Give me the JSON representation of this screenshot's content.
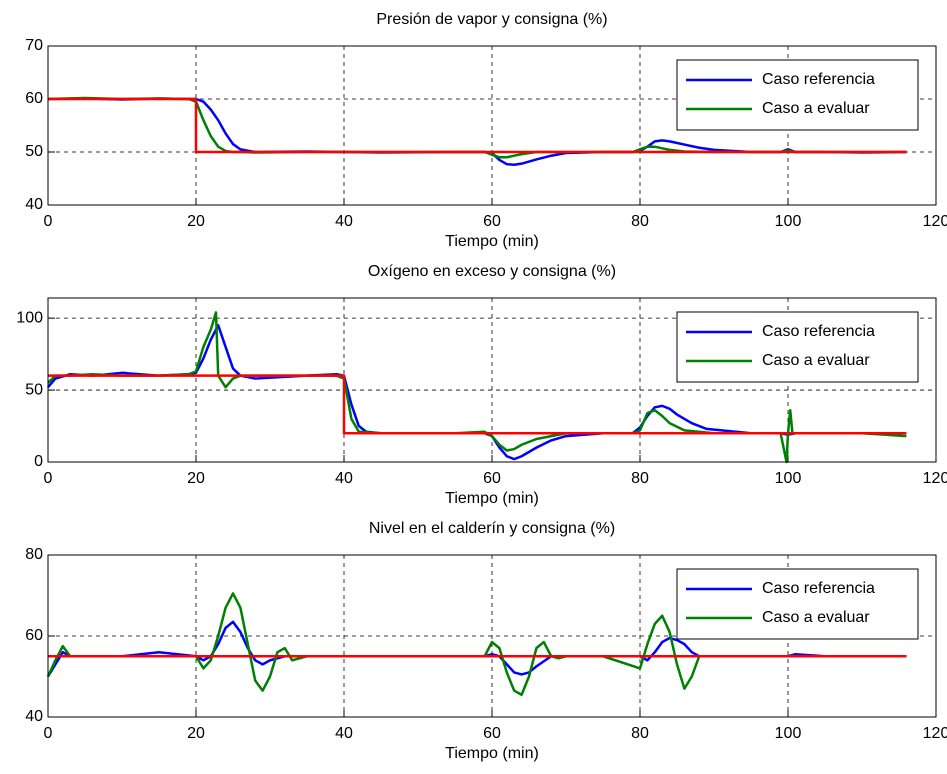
{
  "chart_data": [
    {
      "type": "line",
      "title": "Presión de vapor y consigna (%)",
      "xlabel": "Tiempo (min)",
      "xlim": [
        0,
        120
      ],
      "xticks": [
        0,
        20,
        40,
        60,
        80,
        100,
        120
      ],
      "ylim": [
        40,
        70
      ],
      "yticks": [
        40,
        50,
        60,
        70
      ],
      "grid": true,
      "legend": "upper right",
      "series": [
        {
          "name": "Caso referencia",
          "color": "#0000ff",
          "x": [
            0,
            5,
            10,
            15,
            19,
            20,
            21,
            22,
            23,
            24,
            25,
            26,
            28,
            35,
            45,
            55,
            59,
            60,
            61,
            62,
            63,
            64,
            66,
            68,
            70,
            75,
            79,
            80,
            81,
            82,
            83,
            84,
            86,
            88,
            90,
            95,
            99,
            100,
            101,
            105,
            110,
            116
          ],
          "values": [
            60,
            60.1,
            59.9,
            60.1,
            60,
            60,
            59.5,
            58,
            56,
            53.5,
            51.5,
            50.5,
            50,
            50.1,
            49.9,
            50,
            50,
            49.8,
            48.5,
            47.7,
            47.6,
            47.8,
            48.6,
            49.3,
            49.8,
            50,
            50,
            50.2,
            51,
            52,
            52.2,
            52,
            51.4,
            50.8,
            50.4,
            50,
            50,
            50.5,
            50,
            50,
            49.9,
            50
          ]
        },
        {
          "name": "Caso a evaluar",
          "color": "#008000",
          "x": [
            0,
            5,
            10,
            15,
            19,
            20,
            21,
            22,
            23,
            24,
            25,
            26,
            28,
            35,
            45,
            55,
            59,
            60,
            61,
            62,
            63,
            64,
            66,
            70,
            79,
            80,
            81,
            82,
            83,
            84,
            86,
            90,
            99,
            100,
            101,
            105,
            110,
            116
          ],
          "values": [
            60,
            60.2,
            60,
            60.1,
            60,
            59.5,
            56,
            53,
            51,
            50.2,
            50,
            50,
            49.9,
            50,
            50,
            50,
            50,
            49.5,
            49,
            49,
            49.3,
            49.6,
            50,
            50,
            50,
            50.5,
            51,
            51,
            50.7,
            50.4,
            50.1,
            50,
            50,
            50.3,
            50,
            50,
            50,
            50
          ]
        },
        {
          "color": "#ff0000",
          "x": [
            0,
            20,
            20,
            116
          ],
          "values": [
            60,
            60,
            50,
            50
          ]
        }
      ]
    },
    {
      "type": "line",
      "title": "Oxígeno en exceso y consigna (%)",
      "xlabel": "Tiempo (min)",
      "xlim": [
        0,
        120
      ],
      "xticks": [
        0,
        20,
        40,
        60,
        80,
        100,
        120
      ],
      "ylim": [
        0,
        114
      ],
      "yticks": [
        0,
        50,
        100
      ],
      "grid": true,
      "legend": "upper right",
      "series": [
        {
          "name": "Caso referencia",
          "color": "#0000ff",
          "x": [
            0,
            1,
            3,
            6,
            10,
            15,
            19,
            20,
            21,
            22,
            23,
            24,
            25,
            26,
            28,
            35,
            39,
            40,
            41,
            42,
            43,
            45,
            55,
            59,
            60,
            61,
            62,
            63,
            64,
            66,
            68,
            70,
            75,
            79,
            80,
            81,
            82,
            83,
            84,
            85,
            87,
            89,
            95,
            99,
            100,
            101,
            105,
            116
          ],
          "values": [
            52,
            58,
            61,
            60,
            62,
            60,
            61,
            62,
            72,
            85,
            95,
            80,
            65,
            60,
            58,
            60,
            61,
            60,
            40,
            25,
            21,
            20,
            20,
            20,
            18,
            10,
            4,
            2,
            4,
            10,
            15,
            18,
            20,
            20,
            24,
            32,
            38,
            39,
            37,
            33,
            27,
            23,
            20,
            20,
            19,
            20,
            20,
            20
          ]
        },
        {
          "name": "Caso a evaluar",
          "color": "#008000",
          "x": [
            0,
            1,
            3,
            6,
            10,
            15,
            19,
            20,
            21,
            22,
            22.7,
            23,
            24,
            25,
            26,
            28,
            35,
            39,
            40,
            41,
            42,
            45,
            55,
            59,
            60,
            61,
            62,
            63,
            64,
            66,
            70,
            79,
            80,
            81,
            82,
            83,
            84,
            86,
            90,
            99,
            99.8,
            100,
            100.3,
            100.6,
            101,
            105,
            110,
            116
          ],
          "values": [
            55,
            60,
            60,
            61,
            60,
            60,
            61,
            63,
            80,
            92,
            104,
            60,
            52,
            58,
            60,
            60,
            60,
            60,
            58,
            30,
            21,
            20,
            20,
            21,
            18,
            12,
            8,
            9,
            12,
            16,
            20,
            20,
            22,
            34,
            36,
            32,
            27,
            22,
            20,
            20,
            0,
            20,
            36,
            20,
            20,
            20,
            20,
            18
          ]
        },
        {
          "color": "#ff0000",
          "x": [
            0,
            40,
            40,
            116
          ],
          "values": [
            60,
            60,
            20,
            20
          ]
        }
      ]
    },
    {
      "type": "line",
      "title": "Nivel en el calderín y consigna (%)",
      "xlabel": "Tiempo (min)",
      "xlim": [
        0,
        120
      ],
      "xticks": [
        0,
        20,
        40,
        60,
        80,
        100,
        120
      ],
      "ylim": [
        40,
        80
      ],
      "yticks": [
        40,
        60,
        80
      ],
      "grid": true,
      "legend": "upper right",
      "series": [
        {
          "name": "Caso referencia",
          "color": "#0000ff",
          "x": [
            0,
            1,
            2,
            3,
            5,
            10,
            15,
            20,
            21,
            22,
            23,
            24,
            25,
            26,
            27,
            28,
            29,
            30,
            32,
            35,
            40,
            55,
            58,
            59,
            60,
            61,
            62,
            63,
            64,
            65,
            66,
            68,
            70,
            75,
            80,
            81,
            82,
            83,
            84,
            85,
            86,
            87,
            88,
            90,
            95,
            100,
            101,
            105,
            110,
            116
          ],
          "values": [
            50,
            53,
            56,
            55,
            55,
            55,
            56,
            55,
            54,
            55,
            58,
            62,
            63.5,
            61,
            57,
            54,
            53,
            54,
            55,
            55,
            55,
            55,
            55,
            55,
            55.5,
            55,
            53,
            51,
            50.5,
            51,
            52.5,
            55,
            55,
            55,
            55,
            54,
            56,
            58.5,
            59.5,
            59,
            58,
            56,
            55,
            55,
            55,
            55,
            55.5,
            55,
            55,
            55
          ]
        },
        {
          "name": "Caso a evaluar",
          "color": "#008000",
          "x": [
            0,
            1,
            2,
            3,
            5,
            10,
            15,
            20,
            21,
            22,
            23,
            24,
            25,
            26,
            27,
            28,
            29,
            30,
            31,
            32,
            33,
            35,
            40,
            55,
            59,
            60,
            61,
            62,
            63,
            64,
            65,
            66,
            67,
            68,
            69,
            70,
            75,
            80,
            81,
            82,
            83,
            84,
            85,
            86,
            87,
            88,
            90,
            95,
            100,
            105,
            116
          ],
          "values": [
            50,
            54,
            57.5,
            55,
            55,
            55,
            55,
            55,
            52,
            54,
            60,
            67,
            70.5,
            67,
            58,
            49,
            46.5,
            50,
            56,
            57,
            54,
            55,
            55,
            55,
            55,
            58.5,
            57,
            51,
            46.5,
            45.5,
            50,
            57,
            58.5,
            55,
            54.5,
            55,
            55,
            52,
            58,
            63,
            65,
            61,
            53,
            47,
            50,
            55,
            55,
            55,
            55,
            55,
            55
          ]
        },
        {
          "color": "#ff0000",
          "x": [
            0,
            116
          ],
          "values": [
            55,
            55
          ]
        }
      ]
    }
  ]
}
